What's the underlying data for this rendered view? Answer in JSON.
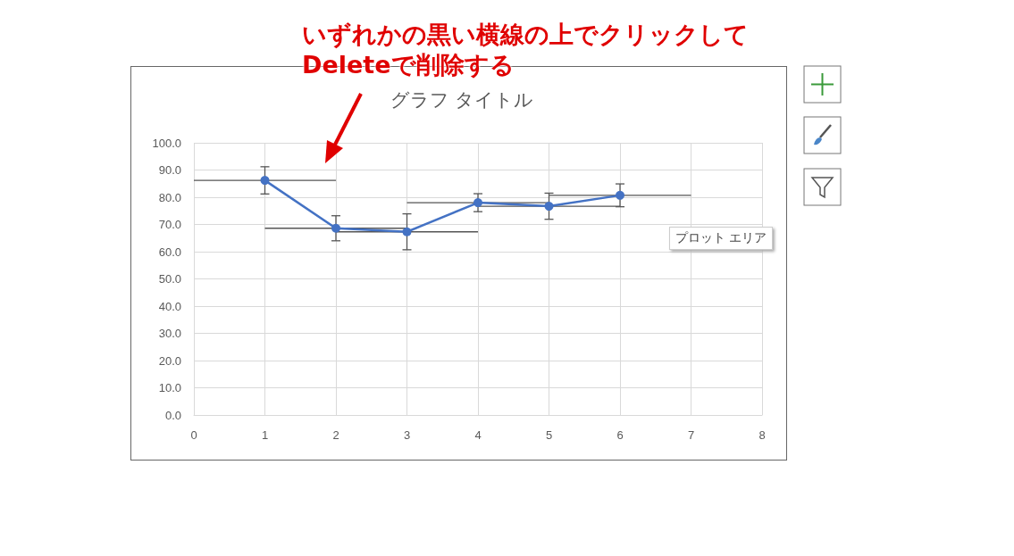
{
  "chart_data": {
    "type": "line",
    "title": "グラフ タイトル",
    "annotations": [
      "いずれかの黒い横線の上でクリックして\nDeleteで削除する",
      "プロット エリア"
    ],
    "x": [
      1,
      2,
      3,
      4,
      5,
      6
    ],
    "series": [
      {
        "color": "#4472c4",
        "values": [
          86.2,
          68.6,
          67.3,
          78.0,
          76.7,
          80.7
        ],
        "errors": [
          5.0,
          4.6,
          6.6,
          3.3,
          4.8,
          4.2
        ],
        "xerrors": [
          1,
          1,
          1,
          1,
          1,
          1
        ]
      }
    ],
    "xlim": [
      0,
      8
    ],
    "xticks": [
      0,
      1,
      2,
      3,
      4,
      5,
      6,
      7,
      8
    ],
    "ylim": [
      0,
      100
    ],
    "yticks": [
      {
        "value": 0,
        "label": "0.0"
      },
      {
        "value": 10,
        "label": "10.0"
      },
      {
        "value": 20,
        "label": "20.0"
      },
      {
        "value": 30,
        "label": "30.0"
      },
      {
        "value": 40,
        "label": "40.0"
      },
      {
        "value": 50,
        "label": "50.0"
      },
      {
        "value": 60,
        "label": "60.0"
      },
      {
        "value": 70,
        "label": "70.0"
      },
      {
        "value": 80,
        "label": "80.0"
      },
      {
        "value": 90,
        "label": "90.0"
      },
      {
        "value": 100,
        "label": "100.0"
      }
    ],
    "grid": true,
    "marker": "circle",
    "line_style": "solid"
  }
}
